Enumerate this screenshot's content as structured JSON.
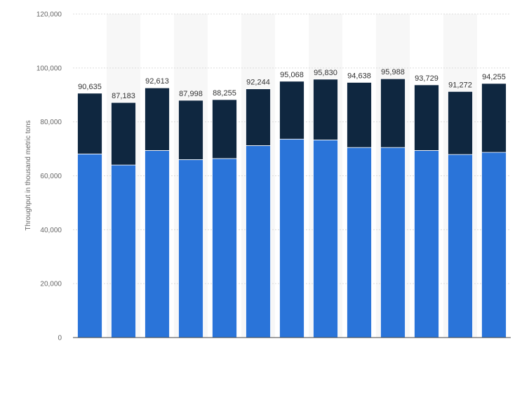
{
  "colors": {
    "background": "#ffffff",
    "band": "#f7f7f7",
    "grid": "#dcdcdc",
    "series_bottom": "#2a74d9",
    "series_top": "#0f2740",
    "axis_text": "#666666",
    "value_text": "#333333"
  },
  "chart_data": {
    "type": "bar",
    "stacked": true,
    "ylabel": "Throughput in thousand metric tons",
    "xlabel": "",
    "ylim": [
      0,
      120000
    ],
    "yticks": [
      0,
      20000,
      40000,
      60000,
      80000,
      100000,
      120000
    ],
    "ytick_labels": [
      "0",
      "20,000",
      "40,000",
      "60,000",
      "80,000",
      "100,000",
      "120,000"
    ],
    "grid": true,
    "legend": "none",
    "categories": [
      "",
      "",
      "",
      "",
      "",
      "",
      "",
      "",
      "",
      "",
      "",
      "",
      ""
    ],
    "series": [
      {
        "values": [
          68100,
          64000,
          69400,
          66000,
          66400,
          71200,
          73600,
          73300,
          70500,
          70500,
          69400,
          67900,
          68700
        ]
      },
      {
        "values": [
          22535,
          23183,
          23213,
          21998,
          21855,
          21044,
          21468,
          22530,
          24138,
          25488,
          24329,
          23372,
          25555
        ]
      }
    ],
    "totals": [
      90635,
      87183,
      92613,
      87998,
      88255,
      92244,
      95068,
      95830,
      94638,
      95988,
      93729,
      91272,
      94255
    ],
    "total_labels": [
      "90,635",
      "87,183",
      "92,613",
      "87,998",
      "88,255",
      "92,244",
      "95,068",
      "95,830",
      "94,638",
      "95,988",
      "93,729",
      "91,272",
      "94,255"
    ]
  }
}
